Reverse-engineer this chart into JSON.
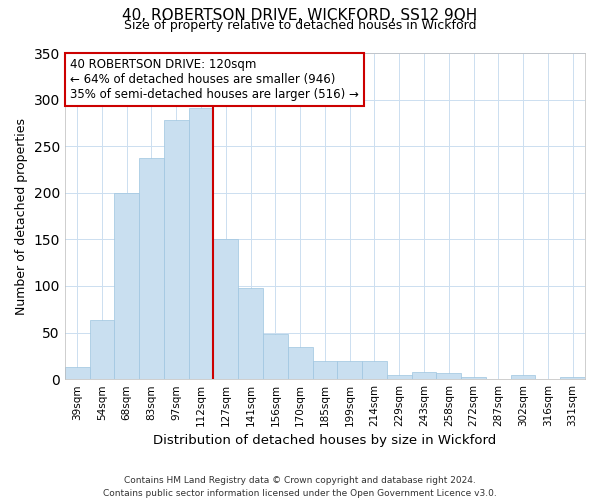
{
  "title": "40, ROBERTSON DRIVE, WICKFORD, SS12 9QH",
  "subtitle": "Size of property relative to detached houses in Wickford",
  "xlabel": "Distribution of detached houses by size in Wickford",
  "ylabel": "Number of detached properties",
  "bar_labels": [
    "39sqm",
    "54sqm",
    "68sqm",
    "83sqm",
    "97sqm",
    "112sqm",
    "127sqm",
    "141sqm",
    "156sqm",
    "170sqm",
    "185sqm",
    "199sqm",
    "214sqm",
    "229sqm",
    "243sqm",
    "258sqm",
    "272sqm",
    "287sqm",
    "302sqm",
    "316sqm",
    "331sqm"
  ],
  "bar_heights": [
    13,
    64,
    200,
    237,
    278,
    291,
    150,
    98,
    48,
    35,
    19,
    20,
    19,
    5,
    8,
    7,
    2,
    0,
    5,
    0,
    2
  ],
  "bar_color": "#c9dff0",
  "bar_edge_color": "#9ec5e0",
  "vline_x": 6,
  "vline_color": "#cc0000",
  "ylim": [
    0,
    350
  ],
  "yticks": [
    0,
    50,
    100,
    150,
    200,
    250,
    300,
    350
  ],
  "annotation_title": "40 ROBERTSON DRIVE: 120sqm",
  "annotation_line1": "← 64% of detached houses are smaller (946)",
  "annotation_line2": "35% of semi-detached houses are larger (516) →",
  "annotation_box_color": "#ffffff",
  "annotation_box_edge_color": "#cc0000",
  "footer_line1": "Contains HM Land Registry data © Crown copyright and database right 2024.",
  "footer_line2": "Contains public sector information licensed under the Open Government Licence v3.0.",
  "background_color": "#ffffff",
  "grid_color": "#ccdff0"
}
